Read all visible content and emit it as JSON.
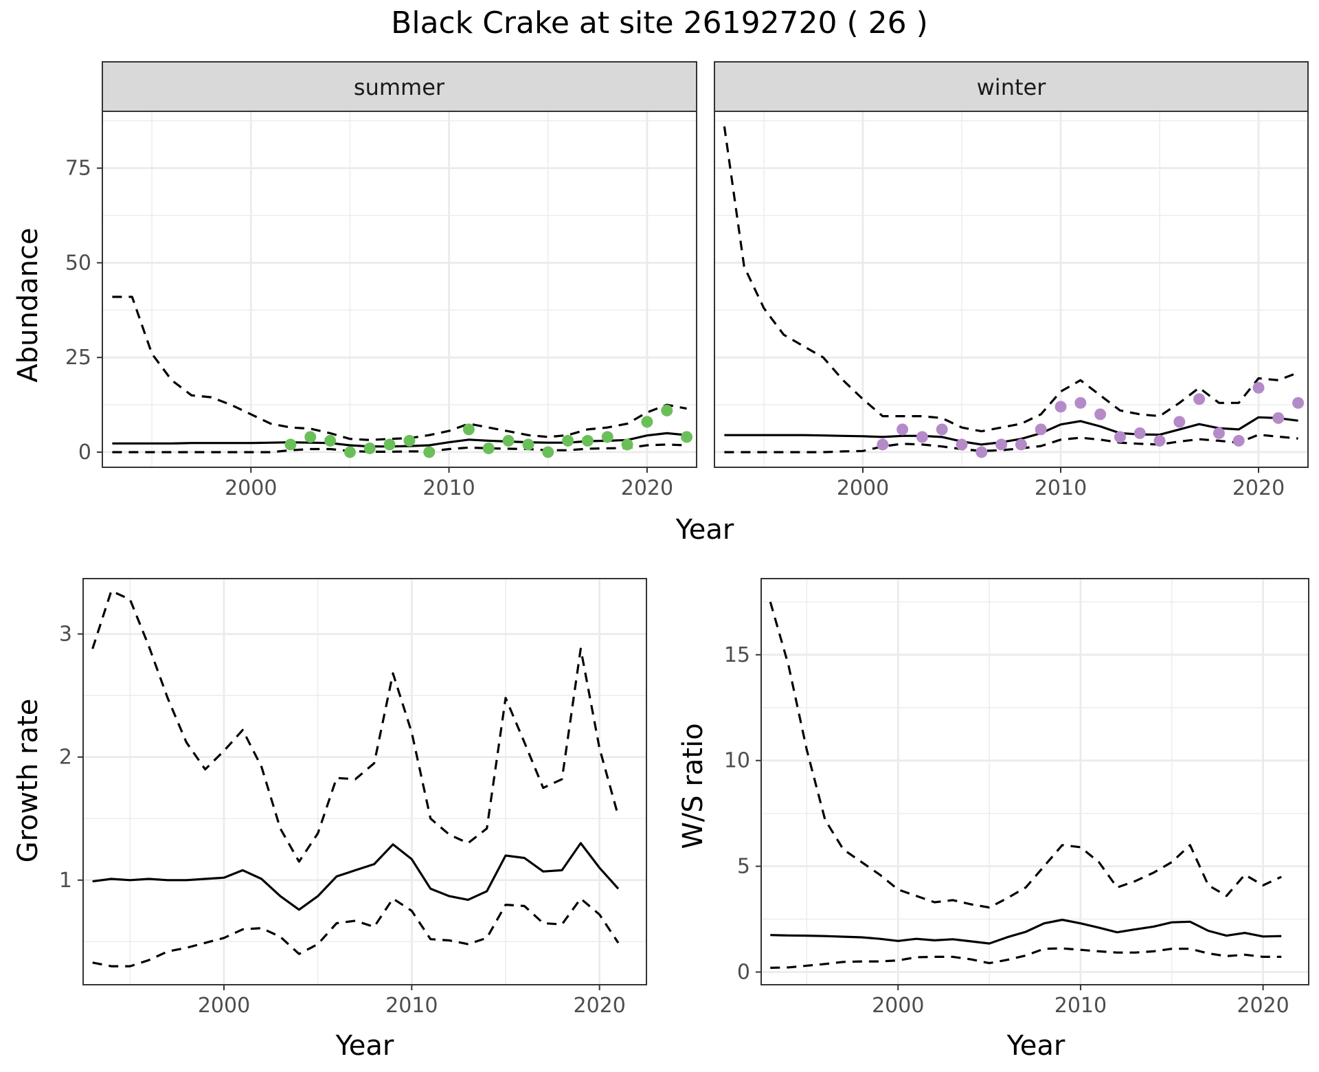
{
  "title": "Black Crake at site 26192720 ( 26 )",
  "colors": {
    "summer_points": "#6BBF59",
    "winter_points": "#B58AC9",
    "line": "#000000",
    "grid": "#EBEBEB",
    "strip": "#D9D9D9"
  },
  "chart_data": [
    {
      "type": "line",
      "panel": "summer",
      "strip_label": "summer",
      "xlabel": "Year",
      "ylabel": "Abundance",
      "xlim": [
        1992.5,
        2022.5
      ],
      "ylim": [
        -4,
        90
      ],
      "xticks": [
        2000,
        2010,
        2020
      ],
      "yticks": [
        0,
        25,
        50,
        75
      ],
      "x": [
        1993,
        1994,
        1995,
        1996,
        1997,
        1998,
        1999,
        2000,
        2001,
        2002,
        2003,
        2004,
        2005,
        2006,
        2007,
        2008,
        2009,
        2010,
        2011,
        2012,
        2013,
        2014,
        2015,
        2016,
        2017,
        2018,
        2019,
        2020,
        2021,
        2022
      ],
      "series": [
        {
          "role": "estimate",
          "style": "solid",
          "values": [
            2.3,
            2.3,
            2.3,
            2.3,
            2.4,
            2.4,
            2.4,
            2.4,
            2.5,
            2.6,
            2.5,
            2.4,
            1.8,
            1.5,
            1.5,
            1.6,
            1.8,
            2.6,
            3.3,
            3.0,
            2.8,
            2.6,
            2.5,
            2.5,
            2.9,
            3.0,
            3.2,
            4.4,
            5.0,
            4.5
          ]
        },
        {
          "role": "upper",
          "style": "dashed",
          "values": [
            41,
            41,
            26,
            19,
            15,
            14.5,
            12.5,
            10,
            7.5,
            6.5,
            6.2,
            5.0,
            3.5,
            3.2,
            3.5,
            3.7,
            4.5,
            5.6,
            7.5,
            6.5,
            5.5,
            4.5,
            4.0,
            4.5,
            6.0,
            6.5,
            7.5,
            10.5,
            12.5,
            11.5
          ]
        },
        {
          "role": "lower",
          "style": "dashed",
          "values": [
            0,
            0,
            0,
            0,
            0,
            0,
            0,
            0,
            0,
            0.5,
            0.8,
            0.8,
            0.3,
            0.1,
            0.1,
            0.2,
            0.2,
            0.8,
            1.2,
            1.0,
            0.9,
            0.8,
            0.5,
            0.5,
            0.9,
            1.0,
            1.1,
            1.8,
            2.0,
            1.8
          ]
        }
      ],
      "points": {
        "color": "#6BBF59",
        "x": [
          2002,
          2003,
          2004,
          2005,
          2006,
          2007,
          2008,
          2009,
          2011,
          2012,
          2013,
          2014,
          2015,
          2016,
          2017,
          2018,
          2019,
          2020,
          2021,
          2022
        ],
        "y": [
          2,
          4,
          3,
          0,
          1,
          2,
          3,
          0,
          6,
          1,
          3,
          2,
          0,
          3,
          3,
          4,
          2,
          8,
          11,
          4
        ]
      }
    },
    {
      "type": "line",
      "panel": "winter",
      "strip_label": "winter",
      "xlabel": "Year",
      "ylabel": "Abundance",
      "xlim": [
        1992.5,
        2022.5
      ],
      "ylim": [
        -4,
        90
      ],
      "xticks": [
        2000,
        2010,
        2020
      ],
      "yticks": [
        0,
        25,
        50,
        75
      ],
      "x": [
        1993,
        1994,
        1995,
        1996,
        1997,
        1998,
        1999,
        2000,
        2001,
        2002,
        2003,
        2004,
        2005,
        2006,
        2007,
        2008,
        2009,
        2010,
        2011,
        2012,
        2013,
        2014,
        2015,
        2016,
        2017,
        2018,
        2019,
        2020,
        2021,
        2022
      ],
      "series": [
        {
          "role": "estimate",
          "style": "solid",
          "values": [
            4.5,
            4.5,
            4.5,
            4.5,
            4.5,
            4.4,
            4.3,
            4.2,
            4.0,
            4.3,
            4.3,
            4.0,
            2.8,
            2.0,
            2.6,
            3.5,
            5.0,
            7.3,
            8.2,
            6.8,
            5.0,
            4.7,
            4.6,
            6.0,
            7.4,
            6.3,
            6.0,
            9.2,
            9.0,
            8.3
          ]
        },
        {
          "role": "upper",
          "style": "dashed",
          "values": [
            86,
            49,
            38,
            31,
            28,
            25,
            19,
            14,
            9.5,
            9.5,
            9.5,
            9.0,
            6.5,
            5.5,
            6.5,
            7.5,
            10,
            16,
            19,
            15,
            11,
            10,
            9.5,
            13,
            17,
            13,
            13,
            19.5,
            19,
            21
          ]
        },
        {
          "role": "lower",
          "style": "dashed",
          "values": [
            0,
            0,
            0,
            0,
            0,
            0,
            0.2,
            0.3,
            1.5,
            2.2,
            2.0,
            1.5,
            0.8,
            0.3,
            0.5,
            1.0,
            1.6,
            3.3,
            3.8,
            3.3,
            2.5,
            2.2,
            2.0,
            2.8,
            3.4,
            3.0,
            2.5,
            4.6,
            4.1,
            3.6
          ]
        }
      ],
      "points": {
        "color": "#B58AC9",
        "x": [
          2001,
          2002,
          2003,
          2004,
          2005,
          2006,
          2007,
          2008,
          2009,
          2010,
          2011,
          2012,
          2013,
          2014,
          2015,
          2016,
          2017,
          2018,
          2019,
          2020,
          2021,
          2022
        ],
        "y": [
          2,
          6,
          4,
          6,
          2,
          0,
          2,
          2,
          6,
          12,
          13,
          10,
          4,
          5,
          3,
          8,
          14,
          5,
          3,
          17,
          9,
          13
        ]
      }
    },
    {
      "type": "line",
      "panel": "growth",
      "xlabel": "Year",
      "ylabel": "Growth rate",
      "xlim": [
        1992.5,
        2022.5
      ],
      "ylim": [
        0.15,
        3.45
      ],
      "xticks": [
        2000,
        2010,
        2020
      ],
      "yticks": [
        1,
        2,
        3
      ],
      "x": [
        1993,
        1994,
        1995,
        1996,
        1997,
        1998,
        1999,
        2000,
        2001,
        2002,
        2003,
        2004,
        2005,
        2006,
        2007,
        2008,
        2009,
        2010,
        2011,
        2012,
        2013,
        2014,
        2015,
        2016,
        2017,
        2018,
        2019,
        2020,
        2021
      ],
      "series": [
        {
          "role": "estimate",
          "style": "solid",
          "values": [
            0.99,
            1.01,
            1.0,
            1.01,
            1.0,
            1.0,
            1.01,
            1.02,
            1.08,
            1.01,
            0.87,
            0.76,
            0.87,
            1.03,
            1.08,
            1.13,
            1.29,
            1.17,
            0.93,
            0.87,
            0.84,
            0.91,
            1.2,
            1.18,
            1.07,
            1.08,
            1.3,
            1.1,
            0.93
          ]
        },
        {
          "role": "upper",
          "style": "dashed",
          "values": [
            2.88,
            3.35,
            3.28,
            2.9,
            2.48,
            2.12,
            1.9,
            2.05,
            2.22,
            1.92,
            1.42,
            1.15,
            1.38,
            1.83,
            1.82,
            1.95,
            2.68,
            2.2,
            1.5,
            1.37,
            1.3,
            1.42,
            2.48,
            2.12,
            1.75,
            1.82,
            2.88,
            2.07,
            1.52
          ]
        },
        {
          "role": "lower",
          "style": "dashed",
          "values": [
            0.33,
            0.3,
            0.3,
            0.35,
            0.42,
            0.45,
            0.49,
            0.53,
            0.6,
            0.61,
            0.54,
            0.4,
            0.48,
            0.65,
            0.67,
            0.62,
            0.85,
            0.75,
            0.52,
            0.51,
            0.48,
            0.53,
            0.8,
            0.79,
            0.65,
            0.64,
            0.85,
            0.72,
            0.49
          ]
        }
      ]
    },
    {
      "type": "line",
      "panel": "ws_ratio",
      "xlabel": "Year",
      "ylabel": "W/S ratio",
      "xlim": [
        1992.5,
        2022.5
      ],
      "ylim": [
        -0.6,
        18.6
      ],
      "xticks": [
        2000,
        2010,
        2020
      ],
      "yticks": [
        0,
        5,
        10,
        15
      ],
      "x": [
        1993,
        1994,
        1995,
        1996,
        1997,
        1998,
        1999,
        2000,
        2001,
        2002,
        2003,
        2004,
        2005,
        2006,
        2007,
        2008,
        2009,
        2010,
        2011,
        2012,
        2013,
        2014,
        2015,
        2016,
        2017,
        2018,
        2019,
        2020,
        2021
      ],
      "series": [
        {
          "role": "estimate",
          "style": "solid",
          "values": [
            1.75,
            1.73,
            1.72,
            1.7,
            1.67,
            1.64,
            1.57,
            1.47,
            1.57,
            1.5,
            1.55,
            1.45,
            1.35,
            1.65,
            1.9,
            2.3,
            2.47,
            2.3,
            2.1,
            1.88,
            2.02,
            2.15,
            2.35,
            2.38,
            1.95,
            1.72,
            1.85,
            1.68,
            1.7
          ]
        },
        {
          "role": "upper",
          "style": "dashed",
          "values": [
            17.5,
            14.5,
            10.5,
            7.2,
            5.8,
            5.2,
            4.6,
            3.9,
            3.6,
            3.3,
            3.4,
            3.2,
            3.05,
            3.5,
            4.0,
            5.0,
            6.0,
            5.9,
            5.2,
            4.0,
            4.3,
            4.7,
            5.2,
            6.0,
            4.1,
            3.6,
            4.6,
            4.1,
            4.5
          ]
        },
        {
          "role": "lower",
          "style": "dashed",
          "values": [
            0.2,
            0.22,
            0.3,
            0.38,
            0.48,
            0.5,
            0.5,
            0.55,
            0.7,
            0.72,
            0.72,
            0.6,
            0.42,
            0.58,
            0.78,
            1.1,
            1.12,
            1.05,
            0.98,
            0.92,
            0.92,
            0.98,
            1.1,
            1.1,
            0.88,
            0.75,
            0.82,
            0.72,
            0.72
          ]
        }
      ]
    }
  ]
}
